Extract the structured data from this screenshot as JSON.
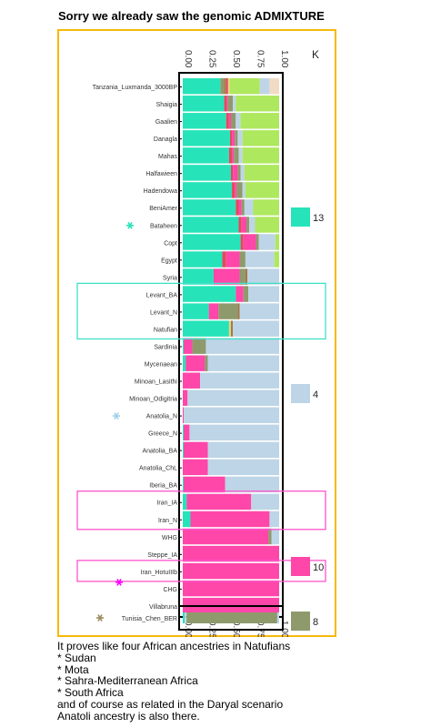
{
  "heading": "Sorry we already saw the genomic ADMIXTURE",
  "chart_data": {
    "type": "bar",
    "orientation": "horizontal-stacked",
    "k_label": "K",
    "x_ticks": [
      "0.00",
      "0.25",
      "0.50",
      "0.75",
      "1.00"
    ],
    "xlim": [
      0,
      1
    ],
    "component_colors": {
      "teal": "#27e3b9",
      "pink": "#ff46a9",
      "lightblue": "#bdd5e6",
      "olive": "#8e9a6c",
      "lime": "#aee85e",
      "beige": "#f2dbc5",
      "brown": "#a5784a",
      "red": "#e3495c",
      "yellow": "#e6d57b"
    },
    "categories": [
      "Tanzania_Luxmanda_3000BP",
      "Shaigia",
      "Gaalien",
      "Danagla",
      "Mahas",
      "Halfawieen",
      "Hadendowa",
      "BeniAmer",
      "Bataheen",
      "Copt",
      "Egypt",
      "Syria",
      "Levant_BA",
      "Levant_N",
      "Natufian",
      "Sardinia",
      "Mycenaean",
      "Minoan_Lasithi",
      "Minoan_Odigitria",
      "Anatolia_N",
      "Greece_N",
      "Anatolia_BA",
      "Anatolia_ChL",
      "Iberia_BA",
      "Iran_IA",
      "Iran_N",
      "WHG",
      "Steppe_IA",
      "Iran_HotuIIIb",
      "CHG",
      "Villabruna"
    ],
    "rows": [
      {
        "name": "Tanzania_Luxmanda_3000BP",
        "segments": [
          [
            "teal",
            0.39
          ],
          [
            "olive",
            0.04
          ],
          [
            "brown",
            0.02
          ],
          [
            "red",
            0.02
          ],
          [
            "yellow",
            0.02
          ],
          [
            "lime",
            0.31
          ],
          [
            "lightblue",
            0.1
          ],
          [
            "beige",
            0.1
          ]
        ]
      },
      {
        "name": "Shaigia",
        "segments": [
          [
            "teal",
            0.43
          ],
          [
            "red",
            0.03
          ],
          [
            "pink",
            0.01
          ],
          [
            "olive",
            0.05
          ],
          [
            "lightblue",
            0.03
          ],
          [
            "lime",
            0.45
          ]
        ]
      },
      {
        "name": "Gaalien",
        "segments": [
          [
            "teal",
            0.45
          ],
          [
            "red",
            0.03
          ],
          [
            "pink",
            0.02
          ],
          [
            "olive",
            0.05
          ],
          [
            "lightblue",
            0.05
          ],
          [
            "lime",
            0.4
          ]
        ]
      },
      {
        "name": "Danagla",
        "segments": [
          [
            "teal",
            0.49
          ],
          [
            "red",
            0.02
          ],
          [
            "pink",
            0.03
          ],
          [
            "olive",
            0.03
          ],
          [
            "lightblue",
            0.05
          ],
          [
            "lime",
            0.38
          ]
        ]
      },
      {
        "name": "Mahas",
        "segments": [
          [
            "teal",
            0.48
          ],
          [
            "red",
            0.03
          ],
          [
            "pink",
            0.02
          ],
          [
            "olive",
            0.05
          ],
          [
            "lightblue",
            0.04
          ],
          [
            "lime",
            0.38
          ]
        ]
      },
      {
        "name": "Halfawieen",
        "segments": [
          [
            "teal",
            0.5
          ],
          [
            "red",
            0.02
          ],
          [
            "pink",
            0.05
          ],
          [
            "olive",
            0.03
          ],
          [
            "lightblue",
            0.04
          ],
          [
            "lime",
            0.36
          ]
        ]
      },
      {
        "name": "Hadendowa",
        "segments": [
          [
            "teal",
            0.51
          ],
          [
            "red",
            0.03
          ],
          [
            "pink",
            0.02
          ],
          [
            "olive",
            0.06
          ],
          [
            "lightblue",
            0.03
          ],
          [
            "lime",
            0.35
          ]
        ]
      },
      {
        "name": "BeniAmer",
        "segments": [
          [
            "teal",
            0.55
          ],
          [
            "red",
            0.03
          ],
          [
            "pink",
            0.03
          ],
          [
            "olive",
            0.03
          ],
          [
            "lightblue",
            0.09
          ],
          [
            "lime",
            0.27
          ]
        ]
      },
      {
        "name": "Bataheen",
        "segments": [
          [
            "teal",
            0.58
          ],
          [
            "red",
            0.03
          ],
          [
            "pink",
            0.05
          ],
          [
            "olive",
            0.03
          ],
          [
            "lightblue",
            0.06
          ],
          [
            "lime",
            0.25
          ]
        ]
      },
      {
        "name": "Copt",
        "segments": [
          [
            "teal",
            0.6
          ],
          [
            "red",
            0.03
          ],
          [
            "pink",
            0.13
          ],
          [
            "olive",
            0.03
          ],
          [
            "lightblue",
            0.17
          ],
          [
            "lime",
            0.04
          ]
        ]
      },
      {
        "name": "Egypt",
        "segments": [
          [
            "teal",
            0.41
          ],
          [
            "red",
            0.04
          ],
          [
            "pink",
            0.14
          ],
          [
            "olive",
            0.06
          ],
          [
            "lightblue",
            0.3
          ],
          [
            "lime",
            0.05
          ]
        ]
      },
      {
        "name": "Syria",
        "segments": [
          [
            "teal",
            0.32
          ],
          [
            "pink",
            0.27
          ],
          [
            "olive",
            0.06
          ],
          [
            "brown",
            0.02
          ],
          [
            "lightblue",
            0.33
          ]
        ]
      },
      {
        "name": "Levant_BA",
        "segments": [
          [
            "teal",
            0.55
          ],
          [
            "pink",
            0.08
          ],
          [
            "olive",
            0.05
          ],
          [
            "lightblue",
            0.32
          ]
        ]
      },
      {
        "name": "Levant_N",
        "segments": [
          [
            "teal",
            0.27
          ],
          [
            "pink",
            0.1
          ],
          [
            "olive",
            0.2
          ],
          [
            "brown",
            0.02
          ],
          [
            "lightblue",
            0.41
          ]
        ]
      },
      {
        "name": "Natufian",
        "segments": [
          [
            "teal",
            0.48
          ],
          [
            "yellow",
            0.02
          ],
          [
            "brown",
            0.02
          ],
          [
            "lightblue",
            0.48
          ]
        ]
      },
      {
        "name": "Sardinia",
        "segments": [
          [
            "teal",
            0.01
          ],
          [
            "pink",
            0.09
          ],
          [
            "olive",
            0.14
          ],
          [
            "lightblue",
            0.76
          ]
        ]
      },
      {
        "name": "Mycenaean",
        "segments": [
          [
            "teal",
            0.03
          ],
          [
            "pink",
            0.2
          ],
          [
            "olive",
            0.03
          ],
          [
            "lightblue",
            0.74
          ]
        ]
      },
      {
        "name": "Minoan_Lasithi",
        "segments": [
          [
            "pink",
            0.18
          ],
          [
            "lightblue",
            0.82
          ]
        ]
      },
      {
        "name": "Minoan_Odigitria",
        "segments": [
          [
            "pink",
            0.05
          ],
          [
            "lightblue",
            0.95
          ]
        ]
      },
      {
        "name": "Anatolia_N",
        "segments": [
          [
            "pink",
            0.01
          ],
          [
            "lightblue",
            0.99
          ]
        ]
      },
      {
        "name": "Greece_N",
        "segments": [
          [
            "teal",
            0.01
          ],
          [
            "pink",
            0.06
          ],
          [
            "lightblue",
            0.93
          ]
        ]
      },
      {
        "name": "Anatolia_BA",
        "segments": [
          [
            "teal",
            0.01
          ],
          [
            "pink",
            0.25
          ],
          [
            "lightblue",
            0.74
          ]
        ]
      },
      {
        "name": "Anatolia_ChL",
        "segments": [
          [
            "pink",
            0.26
          ],
          [
            "lightblue",
            0.74
          ]
        ]
      },
      {
        "name": "Iberia_BA",
        "segments": [
          [
            "teal",
            0.01
          ],
          [
            "pink",
            0.43
          ],
          [
            "lightblue",
            0.56
          ]
        ]
      },
      {
        "name": "Iran_IA",
        "segments": [
          [
            "teal",
            0.04
          ],
          [
            "pink",
            0.67
          ],
          [
            "lightblue",
            0.29
          ]
        ]
      },
      {
        "name": "Iran_N",
        "segments": [
          [
            "teal",
            0.08
          ],
          [
            "pink",
            0.82
          ],
          [
            "lightblue",
            0.1
          ]
        ]
      },
      {
        "name": "WHG",
        "segments": [
          [
            "pink",
            0.89
          ],
          [
            "olive",
            0.03
          ],
          [
            "lightblue",
            0.08
          ]
        ]
      },
      {
        "name": "Steppe_IA",
        "segments": [
          [
            "pink",
            1.0
          ]
        ]
      },
      {
        "name": "Iran_HotuIIIb",
        "segments": [
          [
            "pink",
            1.0
          ]
        ]
      },
      {
        "name": "CHG",
        "segments": [
          [
            "pink",
            1.0
          ]
        ]
      },
      {
        "name": "Villabruna",
        "segments": [
          [
            "pink",
            1.0
          ]
        ]
      }
    ],
    "separate_row": {
      "name": "Tunisia_Chen_BER",
      "segments": [
        [
          "teal",
          0.02
        ],
        [
          "lightblue",
          0.02
        ],
        [
          "olive",
          0.94
        ],
        [
          "lightblue",
          0.02
        ]
      ]
    },
    "legend": [
      {
        "label": "13",
        "color": "#27e3b9"
      },
      {
        "label": "4",
        "color": "#bdd5e6"
      },
      {
        "label": "10",
        "color": "#ff46a9"
      },
      {
        "label": "8",
        "color": "#8e9a6c"
      }
    ],
    "marked_rows": [
      {
        "name": "Bataheen",
        "color": "#27e3b9"
      },
      {
        "name": "Anatolia_N",
        "color": "#9fd0ea"
      },
      {
        "name": "Iran_HotuIIIb",
        "color": "#ff00ff"
      },
      {
        "name": "Tunisia_Chen_BER",
        "color": "#9a8a5c"
      }
    ],
    "highlight_boxes": [
      {
        "from": "Levant_BA",
        "to": "Natufian",
        "color": "#40e0c8"
      },
      {
        "from": "Iran_IA",
        "to": "Iran_N",
        "color": "#ff55cc"
      },
      {
        "from": "Iran_HotuIIIb",
        "to": "Iran_HotuIIIb",
        "color": "#ff55cc"
      }
    ]
  },
  "bottom_text": [
    "It proves like four African ancestries in Natufians",
    "* Sudan",
    "* Mota",
    "* Sahra-Mediterranean Africa",
    "* South Africa",
    "and of course as related in the Daryal scenario",
    "Anatoli ancestry is also there."
  ]
}
